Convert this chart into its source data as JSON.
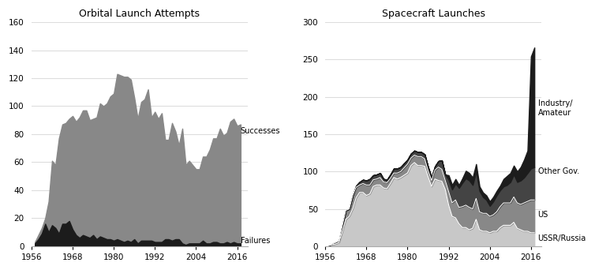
{
  "title_left": "Orbital Launch Attempts",
  "title_right": "Spacecraft Launches",
  "years": [
    1957,
    1958,
    1959,
    1960,
    1961,
    1962,
    1963,
    1964,
    1965,
    1966,
    1967,
    1968,
    1969,
    1970,
    1971,
    1972,
    1973,
    1974,
    1975,
    1976,
    1977,
    1978,
    1979,
    1980,
    1981,
    1982,
    1983,
    1984,
    1985,
    1986,
    1987,
    1988,
    1989,
    1990,
    1991,
    1992,
    1993,
    1994,
    1995,
    1996,
    1997,
    1998,
    1999,
    2000,
    2001,
    2002,
    2003,
    2004,
    2005,
    2006,
    2007,
    2008,
    2009,
    2010,
    2011,
    2012,
    2013,
    2014,
    2015,
    2016,
    2017
  ],
  "failures": [
    2,
    5,
    9,
    16,
    10,
    15,
    13,
    9,
    16,
    16,
    18,
    12,
    8,
    6,
    8,
    7,
    6,
    8,
    5,
    7,
    6,
    5,
    5,
    4,
    5,
    4,
    3,
    4,
    3,
    5,
    2,
    4,
    4,
    4,
    4,
    3,
    3,
    3,
    5,
    5,
    4,
    5,
    5,
    2,
    1,
    2,
    2,
    2,
    2,
    4,
    2,
    2,
    3,
    3,
    2,
    2,
    3,
    2,
    3,
    2,
    2
  ],
  "successes": [
    1,
    3,
    4,
    4,
    22,
    46,
    45,
    68,
    71,
    72,
    73,
    81,
    81,
    86,
    89,
    90,
    84,
    83,
    87,
    95,
    94,
    97,
    102,
    105,
    118,
    118,
    118,
    117,
    116,
    101,
    89,
    99,
    101,
    108,
    88,
    93,
    88,
    92,
    71,
    71,
    84,
    77,
    67,
    82,
    57,
    59,
    56,
    53,
    53,
    60,
    62,
    67,
    74,
    74,
    82,
    77,
    78,
    87,
    88,
    84,
    85
  ],
  "ussr_russia": [
    1,
    2,
    3,
    5,
    20,
    36,
    40,
    50,
    65,
    72,
    72,
    68,
    70,
    80,
    82,
    82,
    78,
    77,
    84,
    92,
    90,
    92,
    95,
    98,
    108,
    112,
    108,
    108,
    107,
    93,
    80,
    90,
    88,
    87,
    76,
    55,
    40,
    38,
    30,
    25,
    25,
    22,
    24,
    36,
    22,
    20,
    20,
    18,
    20,
    20,
    25,
    28,
    28,
    28,
    32,
    24,
    22,
    20,
    20,
    18,
    18
  ],
  "us": [
    0,
    1,
    2,
    2,
    8,
    12,
    10,
    18,
    14,
    10,
    12,
    14,
    12,
    9,
    8,
    10,
    8,
    8,
    7,
    6,
    8,
    8,
    10,
    12,
    10,
    10,
    12,
    12,
    10,
    8,
    8,
    12,
    18,
    16,
    12,
    18,
    18,
    24,
    22,
    28,
    30,
    30,
    26,
    28,
    24,
    24,
    24,
    22,
    22,
    26,
    28,
    30,
    30,
    30,
    34,
    34,
    34,
    38,
    40,
    44,
    44
  ],
  "other_gov": [
    0,
    0,
    0,
    0,
    0,
    0,
    0,
    0,
    2,
    4,
    5,
    6,
    8,
    6,
    6,
    6,
    4,
    4,
    5,
    6,
    6,
    6,
    6,
    6,
    6,
    6,
    6,
    6,
    6,
    5,
    4,
    5,
    8,
    12,
    8,
    16,
    18,
    22,
    26,
    32,
    36,
    36,
    32,
    36,
    28,
    22,
    18,
    14,
    18,
    22,
    22,
    22,
    24,
    28,
    30,
    28,
    32,
    34,
    38,
    42,
    44
  ],
  "industry_amateur": [
    0,
    0,
    0,
    0,
    0,
    0,
    0,
    0,
    0,
    0,
    0,
    0,
    0,
    0,
    0,
    0,
    0,
    0,
    0,
    0,
    0,
    0,
    0,
    0,
    0,
    0,
    0,
    0,
    0,
    0,
    0,
    0,
    0,
    0,
    0,
    6,
    6,
    6,
    4,
    6,
    10,
    10,
    10,
    10,
    6,
    6,
    6,
    6,
    6,
    6,
    6,
    10,
    12,
    12,
    12,
    14,
    18,
    24,
    30,
    150,
    160
  ],
  "color_failures": "#1c1c1c",
  "color_successes": "#888888",
  "color_ussr": "#c8c8c8",
  "color_us": "#888888",
  "color_other_gov": "#444444",
  "color_industry": "#1c1c1c",
  "bg_color": "#ffffff",
  "grid_color": "#dddddd"
}
